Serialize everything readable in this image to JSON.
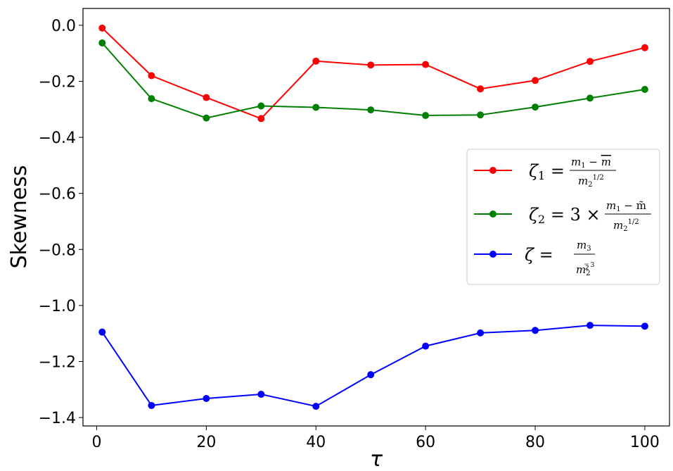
{
  "chart_data": {
    "type": "line",
    "xlabel": "τ",
    "ylabel": "Skewness",
    "xlim": [
      -2.5,
      104.5
    ],
    "ylim": [
      -1.43,
      0.06
    ],
    "x_ticks": [
      0,
      20,
      40,
      60,
      80,
      100
    ],
    "x_tick_labels": [
      "0",
      "20",
      "40",
      "60",
      "80",
      "100"
    ],
    "y_ticks": [
      0.0,
      -0.2,
      -0.4,
      -0.6,
      -0.8,
      -1.0,
      -1.2,
      -1.4
    ],
    "y_tick_labels": [
      "0.0",
      "−0.2",
      "−0.4",
      "−0.6",
      "−0.8",
      "−1.0",
      "−1.2",
      "−1.4"
    ],
    "grid": false,
    "legend_position": "center-right",
    "x": [
      1,
      10,
      20,
      30,
      40,
      50,
      60,
      70,
      80,
      90,
      100
    ],
    "series": [
      {
        "name": "ζ1 = (m1 − m̄) / m2^(1/2)",
        "color": "#ff0000",
        "values": [
          -0.01,
          -0.18,
          -0.258,
          -0.333,
          -0.128,
          -0.142,
          -0.14,
          -0.227,
          -0.197,
          -0.129,
          -0.08
        ]
      },
      {
        "name": "ζ2 = 3 × (m1 − m̃) / m2^(1/2)",
        "color": "#008000",
        "values": [
          -0.063,
          -0.262,
          -0.331,
          -0.288,
          -0.293,
          -0.302,
          -0.322,
          -0.32,
          -0.292,
          -0.26,
          -0.229
        ]
      },
      {
        "name": "ζ = m3 / m2^(3/2)",
        "color": "#0000ff",
        "values": [
          -1.095,
          -1.357,
          -1.332,
          -1.317,
          -1.36,
          -1.247,
          -1.145,
          -1.098,
          -1.089,
          -1.071,
          -1.074
        ]
      }
    ]
  }
}
